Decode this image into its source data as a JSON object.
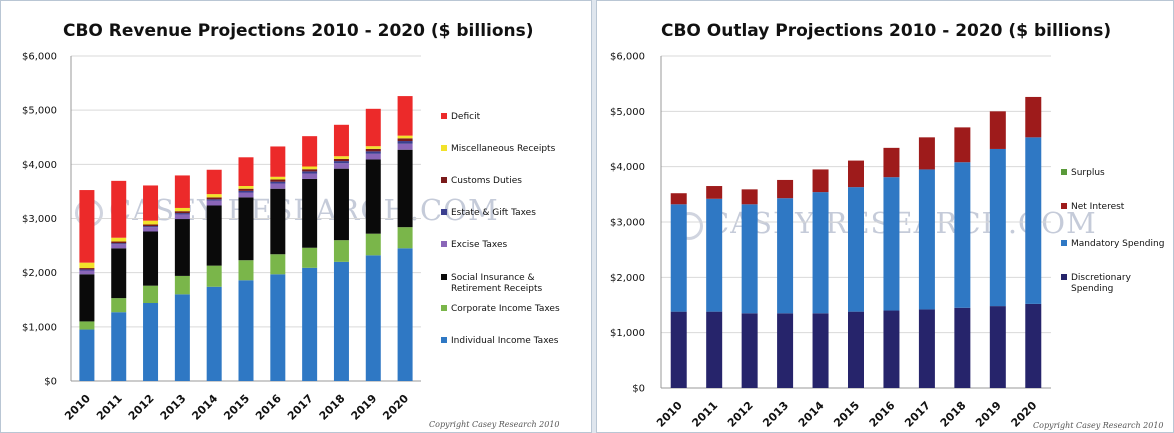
{
  "chart_data": [
    {
      "type": "bar",
      "stacked": true,
      "title": "CBO Revenue Projections 2010 - 2020 ($ billions)",
      "categories": [
        "2010",
        "2011",
        "2012",
        "2013",
        "2014",
        "2015",
        "2016",
        "2017",
        "2018",
        "2019",
        "2020"
      ],
      "ylim": [
        0,
        6000
      ],
      "yticks": [
        0,
        1000,
        2000,
        3000,
        4000,
        5000,
        6000
      ],
      "ytick_labels": [
        "$0",
        "$1,000",
        "$2,000",
        "$3,000",
        "$4,000",
        "$5,000",
        "$6,000"
      ],
      "legend_position": "right",
      "series": [
        {
          "name": "Individual Income Taxes",
          "color": "#2f78c4",
          "values": [
            950,
            1270,
            1440,
            1600,
            1740,
            1860,
            1970,
            2090,
            2200,
            2320,
            2450
          ]
        },
        {
          "name": "Corporate Income Taxes",
          "color": "#7ab64a",
          "values": [
            150,
            260,
            320,
            340,
            390,
            370,
            370,
            370,
            400,
            400,
            390
          ]
        },
        {
          "name": "Social Insurance & Retirement Receipts",
          "color": "#0a0a0a",
          "values": [
            870,
            920,
            1000,
            1050,
            1110,
            1160,
            1210,
            1270,
            1320,
            1370,
            1430
          ]
        },
        {
          "name": "Excise Taxes",
          "color": "#8a66b8",
          "values": [
            70,
            75,
            80,
            85,
            90,
            90,
            95,
            100,
            100,
            105,
            110
          ]
        },
        {
          "name": "Estate & Gift Taxes",
          "color": "#3b3f8f",
          "values": [
            20,
            20,
            20,
            25,
            25,
            30,
            35,
            40,
            40,
            45,
            50
          ]
        },
        {
          "name": "Customs Duties",
          "color": "#7a1a1a",
          "values": [
            25,
            30,
            30,
            35,
            35,
            40,
            40,
            40,
            40,
            45,
            50
          ]
        },
        {
          "name": "Miscellaneous Receipts",
          "color": "#f2e22a",
          "values": [
            100,
            70,
            70,
            60,
            60,
            50,
            50,
            50,
            50,
            50,
            50
          ]
        },
        {
          "name": "Deficit",
          "color": "#ec2a2a",
          "values": [
            1340,
            1050,
            650,
            600,
            450,
            530,
            560,
            560,
            580,
            690,
            730
          ]
        }
      ],
      "copyright": "Copyright Casey Research 2010",
      "watermark": "CASEY RESEARCH.COM"
    },
    {
      "type": "bar",
      "stacked": true,
      "title": "CBO Outlay Projections 2010 - 2020 ($ billions)",
      "categories": [
        "2010",
        "2011",
        "2012",
        "2013",
        "2014",
        "2015",
        "2016",
        "2017",
        "2018",
        "2019",
        "2020"
      ],
      "ylim": [
        0,
        6000
      ],
      "yticks": [
        0,
        1000,
        2000,
        3000,
        4000,
        5000,
        6000
      ],
      "ytick_labels": [
        "$0",
        "$1,000",
        "$2,000",
        "$3,000",
        "$4,000",
        "$5,000",
        "$6,000"
      ],
      "legend_position": "right",
      "series": [
        {
          "name": "Discretionary Spending",
          "color": "#26246b",
          "values": [
            1380,
            1380,
            1350,
            1350,
            1350,
            1380,
            1400,
            1420,
            1450,
            1480,
            1520
          ]
        },
        {
          "name": "Mandatory Spending",
          "color": "#2f78c4",
          "values": [
            1940,
            2040,
            1970,
            2080,
            2190,
            2250,
            2410,
            2530,
            2630,
            2840,
            3010
          ]
        },
        {
          "name": "Net Interest",
          "color": "#9e1b1b",
          "values": [
            200,
            230,
            270,
            330,
            410,
            480,
            530,
            580,
            630,
            680,
            730
          ]
        },
        {
          "name": "Surplus",
          "color": "#5a9a3a",
          "values": [
            0,
            0,
            0,
            0,
            0,
            0,
            0,
            0,
            0,
            0,
            0
          ]
        }
      ],
      "copyright": "Copyright Casey Research 2010",
      "watermark": "CASEY RESEARCH.COM"
    }
  ]
}
